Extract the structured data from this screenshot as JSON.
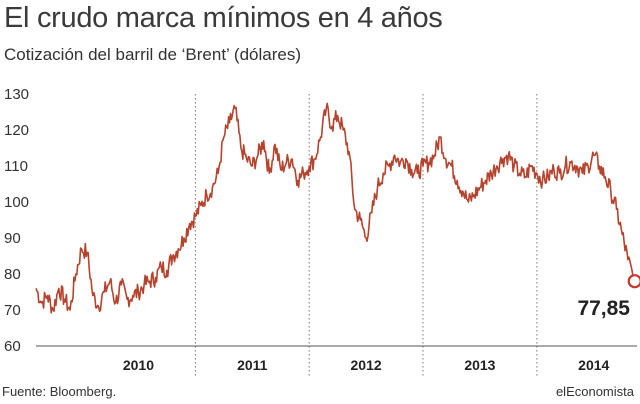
{
  "chart_data": {
    "type": "line",
    "title": "El crudo marca mínimos en 4 años",
    "subtitle": "Cotización del barril de ‘Brent’ (dólares)",
    "ylim": [
      60,
      130
    ],
    "yticks": [
      60,
      70,
      80,
      90,
      100,
      110,
      120,
      130
    ],
    "xlim": [
      2009.6,
      2014.88
    ],
    "x_categories": [
      "2010",
      "2011",
      "2012",
      "2013",
      "2014"
    ],
    "grid": "vertical dotted lines at year boundaries",
    "line_color": "#b5432d",
    "last_value_label": "77,85",
    "series": [
      {
        "x": [
          2009.6,
          2009.65,
          2009.7,
          2009.75,
          2009.8,
          2009.85,
          2009.9,
          2009.95,
          2010.0,
          2010.05,
          2010.1,
          2010.15,
          2010.2,
          2010.25,
          2010.3,
          2010.35,
          2010.4,
          2010.45,
          2010.5,
          2010.55,
          2010.6,
          2010.65,
          2010.7,
          2010.75,
          2010.8,
          2010.85,
          2010.9,
          2010.95,
          2011.0,
          2011.05,
          2011.1,
          2011.15,
          2011.2,
          2011.25,
          2011.3,
          2011.35,
          2011.4,
          2011.45,
          2011.5,
          2011.55,
          2011.6,
          2011.65,
          2011.7,
          2011.75,
          2011.8,
          2011.85,
          2011.9,
          2011.95,
          2012.0,
          2012.05,
          2012.1,
          2012.15,
          2012.2,
          2012.25,
          2012.3,
          2012.35,
          2012.4,
          2012.45,
          2012.5,
          2012.55,
          2012.6,
          2012.65,
          2012.7,
          2012.75,
          2012.8,
          2012.85,
          2012.9,
          2012.95,
          2013.0,
          2013.05,
          2013.1,
          2013.15,
          2013.2,
          2013.25,
          2013.3,
          2013.35,
          2013.4,
          2013.45,
          2013.5,
          2013.55,
          2013.6,
          2013.65,
          2013.7,
          2013.75,
          2013.8,
          2013.85,
          2013.9,
          2013.95,
          2014.0,
          2014.05,
          2014.1,
          2014.15,
          2014.2,
          2014.25,
          2014.3,
          2014.35,
          2014.4,
          2014.45,
          2014.5,
          2014.55,
          2014.6,
          2014.65,
          2014.7,
          2014.75,
          2014.8,
          2014.86
        ],
        "y": [
          76,
          72,
          74,
          70,
          76,
          73,
          70,
          80,
          87,
          86,
          74,
          71,
          75,
          78,
          72,
          77,
          73,
          74,
          75,
          77,
          78,
          79,
          82,
          81,
          85,
          87,
          90,
          94,
          96,
          99,
          102,
          104,
          108,
          118,
          122,
          126,
          115,
          112,
          110,
          113,
          117,
          108,
          116,
          109,
          111,
          112,
          106,
          108,
          110,
          112,
          118,
          126,
          121,
          124,
          120,
          114,
          98,
          95,
          90,
          97,
          104,
          108,
          110,
          113,
          111,
          112,
          109,
          108,
          110,
          111,
          113,
          118,
          112,
          110,
          106,
          103,
          100,
          102,
          104,
          106,
          108,
          110,
          112,
          113,
          110,
          108,
          107,
          110,
          108,
          106,
          107,
          109,
          108,
          110,
          111,
          110,
          108,
          110,
          113,
          110,
          107,
          103,
          98,
          91,
          84,
          78
        ]
      }
    ]
  },
  "footer": {
    "source": "Fuente: Bloomberg.",
    "brand": "elEconomista"
  }
}
